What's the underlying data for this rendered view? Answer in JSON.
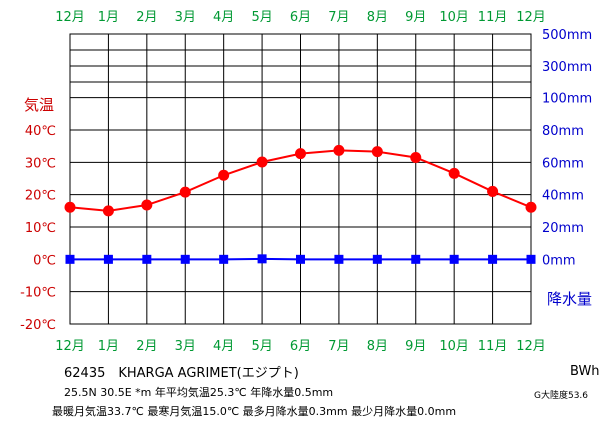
{
  "chart_data": {
    "type": "line",
    "categories": [
      "12月",
      "1月",
      "2月",
      "3月",
      "4月",
      "5月",
      "6月",
      "7月",
      "8月",
      "9月",
      "10月",
      "11月",
      "12月"
    ],
    "series": [
      {
        "name": "気温",
        "values": [
          16.1,
          15.0,
          16.8,
          20.8,
          26.0,
          30.1,
          32.7,
          33.7,
          33.3,
          31.5,
          26.6,
          21.0,
          16.1
        ]
      },
      {
        "name": "降水量",
        "values": [
          0.0,
          0.0,
          0.0,
          0.0,
          0.0,
          0.3,
          0.0,
          0.0,
          0.0,
          0.0,
          0.0,
          0.0,
          0.0
        ]
      }
    ],
    "temperature_axis": {
      "title": "気温",
      "ticks": [
        {
          "value": 40,
          "label": "40℃"
        },
        {
          "value": 30,
          "label": "30℃"
        },
        {
          "value": 20,
          "label": "20℃"
        },
        {
          "value": 10,
          "label": "10℃"
        },
        {
          "value": 0,
          "label": "0℃"
        },
        {
          "value": -10,
          "label": "-10℃"
        },
        {
          "value": -20,
          "label": "-20℃"
        }
      ],
      "ylim": [
        -20,
        40
      ],
      "color": "#cc0000"
    },
    "precipitation_axis": {
      "title": "降水量",
      "ticks": [
        {
          "value": 500,
          "label": "500mm"
        },
        {
          "value": 300,
          "label": "300mm"
        },
        {
          "value": 100,
          "label": "100mm"
        },
        {
          "value": 80,
          "label": "80mm"
        },
        {
          "value": 60,
          "label": "60mm"
        },
        {
          "value": 40,
          "label": "40mm"
        },
        {
          "value": 20,
          "label": "20mm"
        },
        {
          "value": 0,
          "label": "0mm"
        }
      ],
      "color": "#0000cc"
    },
    "month_label_color": "#009933",
    "temperature_color": "#ff0000",
    "precipitation_color": "#0000ff",
    "grid": true
  },
  "info": {
    "line1": "62435　KHARGA AGRIMET(エジプト)",
    "line2": "25.5N  30.5E  *m  年平均気温25.3℃  年降水量0.5mm",
    "line3": "最暖月気温33.7℃ 最寒月気温15.0℃ 最多月降水量0.3mm 最少月降水量0.0mm",
    "climate_class": "BWh",
    "continentality": "G大陸度53.6"
  }
}
